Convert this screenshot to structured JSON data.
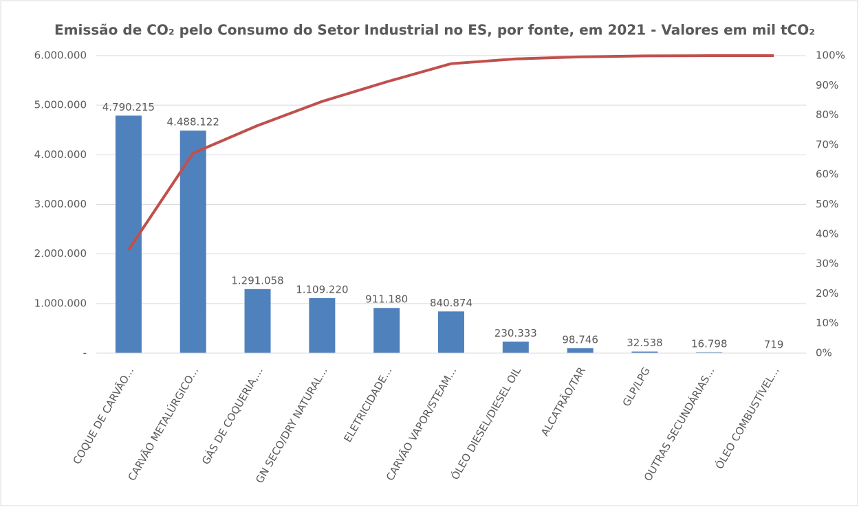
{
  "chart_data": {
    "type": "pareto",
    "title": "Emissão de CO₂ pelo Consumo do Setor Industrial no ES, por fonte, em 2021 - Valores em mil tCO₂",
    "categories": [
      "COQUE DE CARVÃO...",
      "CARVÃO METALÚRGICO...",
      "GÁS DE COQUERIA,...",
      "GN SECO/DRY NATURAL...",
      "ELETRICIDADE...",
      "CARVÃO VAPOR/STEAM...",
      "ÓLEO DIESEL/DIESEL OIL",
      "ALCATRÃO/TAR",
      "GLP/LPG",
      "OUTRAS SECUNDÁRIAS...",
      "ÓLEO COMBUSTÍVEL..."
    ],
    "values": [
      4790215,
      4488122,
      1291058,
      1109220,
      911180,
      840874,
      230333,
      98746,
      32538,
      16798,
      719
    ],
    "value_labels": [
      "4.790.215",
      "4.488.122",
      "1.291.058",
      "1.109.220",
      "911.180",
      "840.874",
      "230.333",
      "98.746",
      "32.538",
      "16.798",
      "719"
    ],
    "color": "#4f81bd",
    "line": {
      "values": [
        34.7,
        67.2,
        76.5,
        84.6,
        91.2,
        97.3,
        98.9,
        99.6,
        99.9,
        99.99,
        100
      ],
      "color": "#c0504d",
      "axis": "y2"
    },
    "ylim": [
      0,
      6000000
    ],
    "yticks": [
      {
        "value": 0,
        "label": "-"
      },
      {
        "value": 1000000,
        "label": "1.000.000"
      },
      {
        "value": 2000000,
        "label": "2.000.000"
      },
      {
        "value": 3000000,
        "label": "3.000.000"
      },
      {
        "value": 4000000,
        "label": "4.000.000"
      },
      {
        "value": 5000000,
        "label": "5.000.000"
      },
      {
        "value": 6000000,
        "label": "6.000.000"
      }
    ],
    "y2lim": [
      0,
      100
    ],
    "y2ticks": [
      {
        "value": 0,
        "label": "0%"
      },
      {
        "value": 10,
        "label": "10%"
      },
      {
        "value": 20,
        "label": "20%"
      },
      {
        "value": 30,
        "label": "30%"
      },
      {
        "value": 40,
        "label": "40%"
      },
      {
        "value": 50,
        "label": "50%"
      },
      {
        "value": 60,
        "label": "60%"
      },
      {
        "value": 70,
        "label": "70%"
      },
      {
        "value": 80,
        "label": "80%"
      },
      {
        "value": 90,
        "label": "90%"
      },
      {
        "value": 100,
        "label": "100%"
      }
    ],
    "grid": true
  }
}
